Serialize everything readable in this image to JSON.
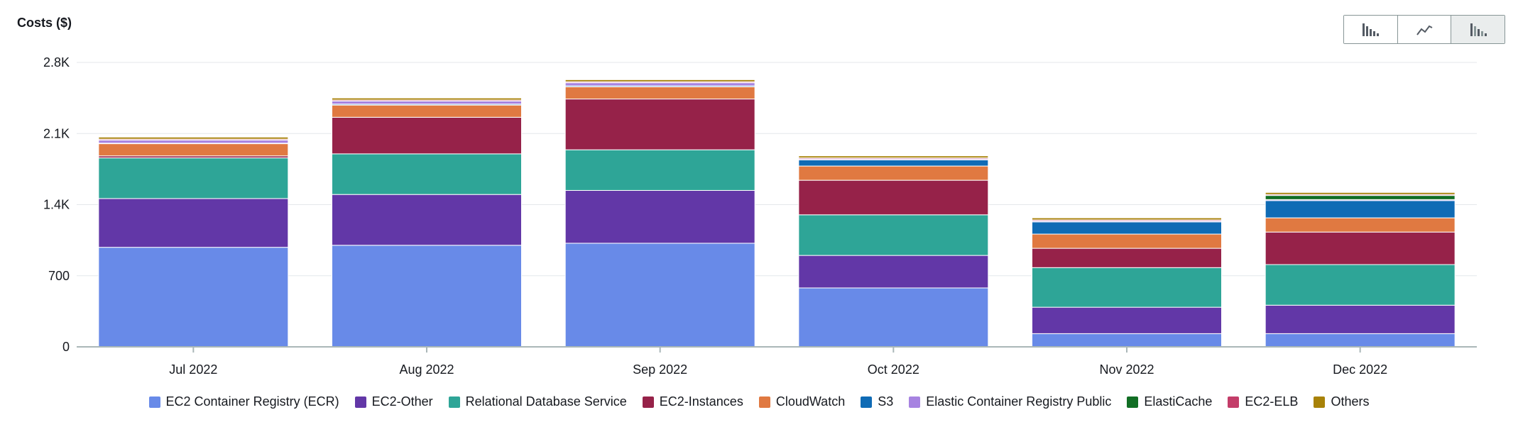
{
  "y_title": "Costs ($)",
  "view_toggle": {
    "options": [
      "bar-chart-icon",
      "line-chart-icon",
      "stacked-bar-chart-icon"
    ],
    "active": 2
  },
  "chart_data": {
    "type": "bar",
    "stacked": true,
    "categories": [
      "Jul 2022",
      "Aug 2022",
      "Sep 2022",
      "Oct 2022",
      "Nov 2022",
      "Dec 2022"
    ],
    "ylim": [
      0,
      2800
    ],
    "yticks": [
      0,
      700,
      1400,
      2100,
      2800
    ],
    "ytick_labels": [
      "0",
      "700",
      "1.4K",
      "2.1K",
      "2.8K"
    ],
    "grid": true,
    "legend_position": "bottom",
    "series": [
      {
        "name": "EC2 Container Registry (ECR)",
        "color": "#688ae8",
        "values": [
          980,
          1000,
          1020,
          580,
          130,
          130
        ]
      },
      {
        "name": "EC2-Other",
        "color": "#6237a7",
        "values": [
          480,
          500,
          520,
          320,
          260,
          280
        ]
      },
      {
        "name": "Relational Database Service",
        "color": "#2ea597",
        "values": [
          400,
          400,
          400,
          400,
          390,
          400
        ]
      },
      {
        "name": "EC2-Instances",
        "color": "#962249",
        "values": [
          20,
          360,
          500,
          340,
          190,
          320
        ]
      },
      {
        "name": "CloudWatch",
        "color": "#e07941",
        "values": [
          120,
          120,
          120,
          140,
          140,
          140
        ]
      },
      {
        "name": "S3",
        "color": "#0f6bb5",
        "values": [
          5,
          10,
          10,
          60,
          120,
          170
        ]
      },
      {
        "name": "Elastic Container Registry Public",
        "color": "#a783e1",
        "values": [
          30,
          30,
          30,
          10,
          10,
          10
        ]
      },
      {
        "name": "ElastiCache",
        "color": "#116e24",
        "values": [
          0,
          0,
          0,
          0,
          0,
          40
        ]
      },
      {
        "name": "EC2-ELB",
        "color": "#c33d69",
        "values": [
          10,
          10,
          10,
          10,
          10,
          10
        ]
      },
      {
        "name": "Others",
        "color": "#a88208",
        "values": [
          20,
          20,
          20,
          20,
          20,
          20
        ]
      }
    ]
  }
}
